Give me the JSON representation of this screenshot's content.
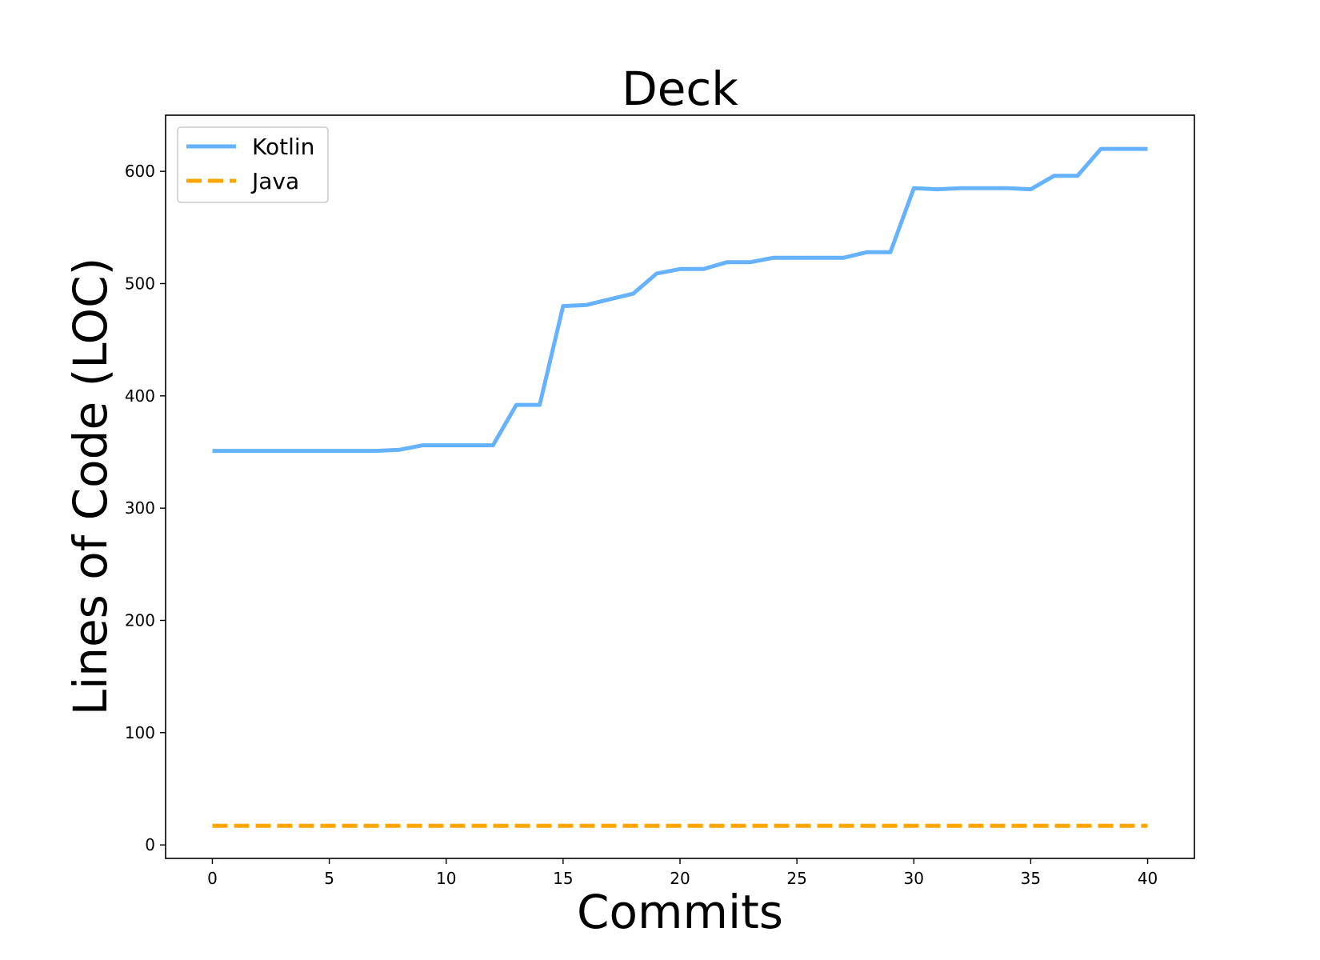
{
  "chart_data": {
    "type": "line",
    "title": "Deck",
    "xlabel": "Commits",
    "ylabel": "Lines of Code (LOC)",
    "xlim": [
      -2,
      42
    ],
    "ylim": [
      -12,
      650
    ],
    "xticks": [
      0,
      5,
      10,
      15,
      20,
      25,
      30,
      35,
      40
    ],
    "yticks": [
      0,
      100,
      200,
      300,
      400,
      500,
      600
    ],
    "grid": false,
    "legend_position": "top-left",
    "series": [
      {
        "name": "Kotlin",
        "color": "#66b2ff",
        "style": "solid",
        "x": [
          0,
          1,
          2,
          3,
          4,
          5,
          6,
          7,
          8,
          9,
          10,
          11,
          12,
          13,
          14,
          15,
          16,
          17,
          18,
          19,
          20,
          21,
          22,
          23,
          24,
          25,
          26,
          27,
          28,
          29,
          30,
          31,
          32,
          33,
          34,
          35,
          36,
          37,
          38,
          39,
          40
        ],
        "values": [
          351,
          351,
          351,
          351,
          351,
          351,
          351,
          351,
          352,
          356,
          356,
          356,
          356,
          392,
          392,
          480,
          481,
          486,
          491,
          509,
          513,
          513,
          519,
          519,
          523,
          523,
          523,
          523,
          528,
          528,
          585,
          584,
          585,
          585,
          585,
          584,
          596,
          596,
          620,
          620,
          620
        ]
      },
      {
        "name": "Java",
        "color": "#ffa500",
        "style": "dashed",
        "x": [
          0,
          40
        ],
        "values": [
          17,
          17
        ]
      }
    ]
  }
}
